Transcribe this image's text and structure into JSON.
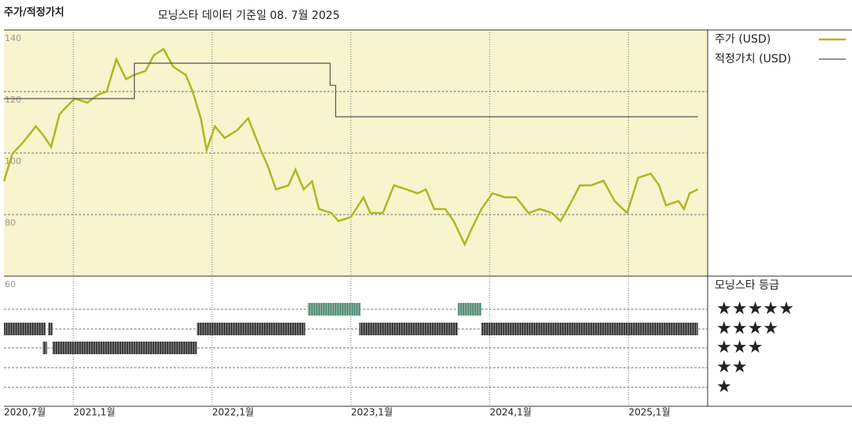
{
  "chart_data": {
    "type": "line",
    "title": "주가/적정가치",
    "subtitle": "모닝스타 데이터 기준일 08. 7월 2025",
    "xlim": [
      2020.5,
      2025.57
    ],
    "xticks": [
      {
        "value": 2020.5,
        "label": "2020,7월"
      },
      {
        "value": 2021,
        "label": "2021,1월"
      },
      {
        "value": 2022,
        "label": "2022,1월"
      },
      {
        "value": 2023,
        "label": "2023,1월"
      },
      {
        "value": 2024,
        "label": "2024,1월"
      },
      {
        "value": 2025,
        "label": "2025,1월"
      }
    ],
    "ylim": [
      60,
      140
    ],
    "yticks": [
      60,
      80,
      100,
      120,
      140
    ],
    "grid": true,
    "legend": "right",
    "series": [
      {
        "name": "주가 (USD)",
        "color": "#b2b524",
        "x": [
          2020.5,
          2020.56,
          2020.64,
          2020.73,
          2020.78,
          2020.84,
          2020.9,
          2020.95,
          2021.01,
          2021.1,
          2021.18,
          2021.24,
          2021.31,
          2021.38,
          2021.44,
          2021.52,
          2021.58,
          2021.65,
          2021.72,
          2021.81,
          2021.86,
          2021.92,
          2021.96,
          2022.02,
          2022.09,
          2022.18,
          2022.26,
          2022.35,
          2022.4,
          2022.46,
          2022.55,
          2022.6,
          2022.66,
          2022.72,
          2022.77,
          2022.86,
          2022.91,
          2023.0,
          2023.09,
          2023.14,
          2023.23,
          2023.31,
          2023.4,
          2023.48,
          2023.54,
          2023.6,
          2023.68,
          2023.74,
          2023.82,
          2023.87,
          2023.94,
          2024.02,
          2024.11,
          2024.19,
          2024.28,
          2024.36,
          2024.45,
          2024.51,
          2024.56,
          2024.65,
          2024.73,
          2024.82,
          2024.9,
          2024.99,
          2025.07,
          2025.16,
          2025.22,
          2025.27,
          2025.36,
          2025.4,
          2025.44,
          2025.5
        ],
        "values": [
          90.8,
          99.7,
          103.6,
          108.7,
          106,
          102,
          112.6,
          115,
          117.7,
          116.4,
          119,
          120,
          130.5,
          124,
          125.4,
          126.7,
          131.8,
          133.8,
          128,
          125.4,
          120,
          111,
          101,
          108.7,
          104.9,
          107.4,
          111.3,
          101,
          95.9,
          88.2,
          89.5,
          94.6,
          88.2,
          90.8,
          81.8,
          80.5,
          77.9,
          79.2,
          85.6,
          80.5,
          80.5,
          89.5,
          88.2,
          86.9,
          88.2,
          81.8,
          81.8,
          77.9,
          70.3,
          75.4,
          81.8,
          86.9,
          85.6,
          85.6,
          80.5,
          81.8,
          80.5,
          77.9,
          81.8,
          89.5,
          89.5,
          91,
          84.4,
          80.5,
          92,
          93.3,
          89.5,
          83,
          84.4,
          81.8,
          86.9,
          88.2
        ]
      },
      {
        "name": "적정가치 (USD)",
        "color": "#555555",
        "x": [
          2020.5,
          2021.44,
          2021.44,
          2022.85,
          2022.85,
          2022.89,
          2022.89,
          2025.5
        ],
        "values": [
          117.7,
          117.7,
          129.2,
          129.2,
          122,
          122,
          111.8,
          111.8
        ]
      }
    ],
    "rating_title": "모닝스타 등급",
    "ratings": [
      {
        "label": "★★★★★",
        "color": "#3f7f66",
        "periods": [
          [
            2022.69,
            2023.07
          ],
          [
            2023.77,
            2023.94
          ]
        ]
      },
      {
        "label": "★★★★",
        "color": "#222222",
        "periods": [
          [
            2020.5,
            2020.8
          ],
          [
            2020.82,
            2020.85
          ],
          [
            2021.89,
            2022.67
          ],
          [
            2023.06,
            2023.77
          ],
          [
            2023.94,
            2025.5
          ]
        ]
      },
      {
        "label": "★★★",
        "color": "#222222",
        "periods": [
          [
            2020.78,
            2020.81
          ],
          [
            2020.85,
            2021.89
          ]
        ]
      },
      {
        "label": "★★",
        "color": "#222222",
        "periods": []
      },
      {
        "label": "★",
        "color": "#222222",
        "periods": []
      }
    ]
  }
}
